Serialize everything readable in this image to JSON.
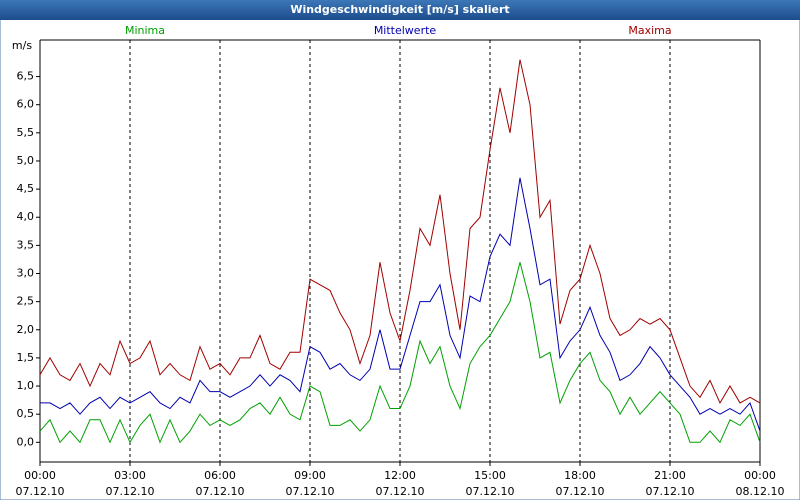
{
  "chart_data": {
    "type": "line",
    "title": "Windgeschwindigkeit [m/s] skaliert",
    "y_label": "m/s",
    "x": [
      0,
      20,
      40,
      60,
      80,
      100,
      120,
      140,
      160,
      180,
      200,
      220,
      240,
      260,
      280,
      300,
      320,
      340,
      360,
      380,
      400,
      420,
      440,
      460,
      480,
      500,
      520,
      540,
      560,
      580,
      600,
      620,
      640,
      660,
      680,
      700,
      720,
      740,
      760,
      780,
      800,
      820,
      840,
      860,
      880,
      900,
      920,
      940,
      960,
      980,
      1000,
      1020,
      1040,
      1060,
      1080,
      1100,
      1120,
      1140,
      1160,
      1180,
      1200,
      1220,
      1240,
      1260,
      1280,
      1300,
      1320,
      1340,
      1360,
      1380,
      1400,
      1420,
      1440
    ],
    "xlim": [
      0,
      1440
    ],
    "xticks": [
      {
        "value": 0,
        "label": "00:00"
      },
      {
        "value": 180,
        "label": "03:00"
      },
      {
        "value": 360,
        "label": "06:00"
      },
      {
        "value": 540,
        "label": "09:00"
      },
      {
        "value": 720,
        "label": "12:00"
      },
      {
        "value": 900,
        "label": "15:00"
      },
      {
        "value": 1080,
        "label": "18:00"
      },
      {
        "value": 1260,
        "label": "21:00"
      },
      {
        "value": 1440,
        "label": "00:00"
      }
    ],
    "xtick_dates": [
      "07.12.10",
      "07.12.10",
      "07.12.10",
      "07.12.10",
      "07.12.10",
      "07.12.10",
      "07.12.10",
      "07.12.10",
      "08.12.10"
    ],
    "ylim": [
      -0.35,
      7.15
    ],
    "yticks": [
      {
        "value": 0,
        "label": "0,0"
      },
      {
        "value": 0.5,
        "label": "0,5"
      },
      {
        "value": 1,
        "label": "1,0"
      },
      {
        "value": 1.5,
        "label": "1,5"
      },
      {
        "value": 2,
        "label": "2,0"
      },
      {
        "value": 2.5,
        "label": "2,5"
      },
      {
        "value": 3,
        "label": "3,0"
      },
      {
        "value": 3.5,
        "label": "3,5"
      },
      {
        "value": 4,
        "label": "4,0"
      },
      {
        "value": 4.5,
        "label": "4,5"
      },
      {
        "value": 5,
        "label": "5,0"
      },
      {
        "value": 5.5,
        "label": "5,5"
      },
      {
        "value": 6,
        "label": "6,0"
      },
      {
        "value": 6.5,
        "label": "6,5"
      }
    ],
    "grid": true,
    "series": [
      {
        "name": "Minima",
        "color": "#00a000",
        "values": [
          0.2,
          0.4,
          0.0,
          0.2,
          0.0,
          0.4,
          0.4,
          0.0,
          0.4,
          0.0,
          0.3,
          0.5,
          0.0,
          0.4,
          0.0,
          0.2,
          0.5,
          0.3,
          0.4,
          0.3,
          0.4,
          0.6,
          0.7,
          0.5,
          0.8,
          0.5,
          0.4,
          1.0,
          0.9,
          0.3,
          0.3,
          0.4,
          0.2,
          0.4,
          1.0,
          0.6,
          0.6,
          1.0,
          1.8,
          1.4,
          1.7,
          1.0,
          0.6,
          1.4,
          1.7,
          1.9,
          2.2,
          2.5,
          3.2,
          2.5,
          1.5,
          1.6,
          0.7,
          1.1,
          1.4,
          1.6,
          1.1,
          0.9,
          0.5,
          0.8,
          0.5,
          0.7,
          0.9,
          0.7,
          0.5,
          0.0,
          0.0,
          0.2,
          0.0,
          0.4,
          0.3,
          0.5,
          0.0
        ]
      },
      {
        "name": "Mittelwerte",
        "color": "#0000b0",
        "values": [
          0.7,
          0.7,
          0.6,
          0.7,
          0.5,
          0.7,
          0.8,
          0.6,
          0.8,
          0.7,
          0.8,
          0.9,
          0.7,
          0.6,
          0.8,
          0.7,
          1.1,
          0.9,
          0.9,
          0.8,
          0.9,
          1.0,
          1.2,
          1.0,
          1.2,
          1.1,
          0.9,
          1.7,
          1.6,
          1.3,
          1.4,
          1.2,
          1.1,
          1.3,
          2.0,
          1.3,
          1.3,
          1.9,
          2.5,
          2.5,
          2.8,
          1.9,
          1.5,
          2.6,
          2.5,
          3.3,
          3.7,
          3.5,
          4.7,
          3.8,
          2.8,
          2.9,
          1.5,
          1.8,
          2.0,
          2.4,
          1.9,
          1.6,
          1.1,
          1.2,
          1.4,
          1.7,
          1.5,
          1.2,
          1.0,
          0.8,
          0.5,
          0.6,
          0.5,
          0.6,
          0.5,
          0.7,
          0.2
        ]
      },
      {
        "name": "Maxima",
        "color": "#a00000",
        "values": [
          1.2,
          1.5,
          1.2,
          1.1,
          1.4,
          1.0,
          1.4,
          1.2,
          1.8,
          1.4,
          1.5,
          1.8,
          1.2,
          1.4,
          1.2,
          1.1,
          1.7,
          1.3,
          1.4,
          1.2,
          1.5,
          1.5,
          1.9,
          1.4,
          1.3,
          1.6,
          1.6,
          2.9,
          2.8,
          2.7,
          2.3,
          2.0,
          1.4,
          1.9,
          3.2,
          2.3,
          1.8,
          2.7,
          3.8,
          3.5,
          4.4,
          3.0,
          2.0,
          3.8,
          4.0,
          5.2,
          6.3,
          5.5,
          6.8,
          6.0,
          4.0,
          4.3,
          2.1,
          2.7,
          2.9,
          3.5,
          3.0,
          2.2,
          1.9,
          2.0,
          2.2,
          2.1,
          2.2,
          2.0,
          1.5,
          1.0,
          0.8,
          1.1,
          0.7,
          1.0,
          0.7,
          0.8,
          0.7
        ]
      }
    ]
  }
}
